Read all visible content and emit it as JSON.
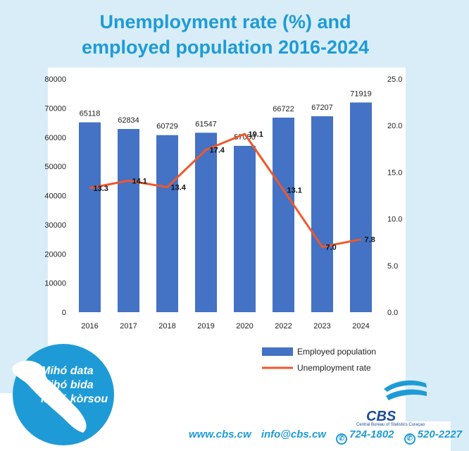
{
  "title_line1": "Unemployment rate (%) and",
  "title_line2": "employed population 2016-2024",
  "chart_data": {
    "type": "bar",
    "categories": [
      "2016",
      "2017",
      "2018",
      "2019",
      "2020",
      "2022",
      "2023",
      "2024"
    ],
    "series": [
      {
        "name": "Employed population",
        "type": "bar",
        "axis": "left",
        "values": [
          65118,
          62834,
          60729,
          61547,
          57050,
          66722,
          67207,
          71919
        ]
      },
      {
        "name": "Unemployment rate",
        "type": "line",
        "axis": "right",
        "values": [
          13.3,
          14.1,
          13.4,
          17.4,
          19.1,
          13.1,
          7.0,
          7.8
        ]
      }
    ],
    "ylim_left": [
      0,
      80000
    ],
    "yticks_left": [
      "0",
      "10000",
      "20000",
      "30000",
      "40000",
      "50000",
      "60000",
      "70000",
      "80000"
    ],
    "ylim_right": [
      0,
      25
    ],
    "yticks_right": [
      "0.0",
      "5.0",
      "10.0",
      "15.0",
      "20.0",
      "25.0"
    ],
    "bar_labels": [
      "65118",
      "62834",
      "60729",
      "61547",
      "57050",
      "66722",
      "67207",
      "71919"
    ],
    "line_labels": [
      "13.3",
      "14.1",
      "13.4",
      "17.4",
      "19.1",
      "13.1",
      "7.0",
      "7.8"
    ],
    "legend_position": "bottom-right",
    "bar_color": "#4472c4",
    "line_color": "#f0582a"
  },
  "slogan": [
    "Mihó data",
    "Mihó bida",
    "Mihó kòrsou"
  ],
  "footer": {
    "website": "www.cbs.cw",
    "email": "info@cbs.cw",
    "phone1": "724-1802",
    "phone2": "520-2227"
  },
  "logo": {
    "name": "CBS",
    "subtitle": "Central Bureau of Statistics Curaçao"
  },
  "colors": {
    "background": "#d9edf8",
    "title": "#1e9bd6",
    "brand": "#1a4a9a"
  }
}
